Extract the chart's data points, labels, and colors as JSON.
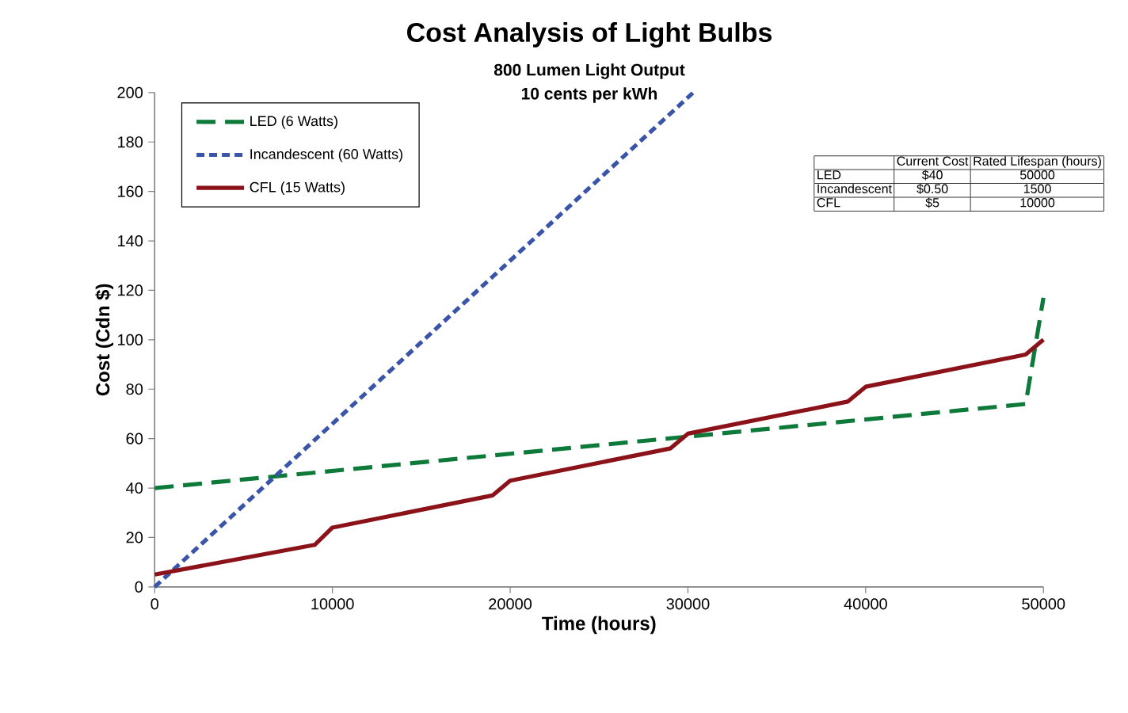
{
  "chart_data": {
    "type": "line",
    "title": "Cost Analysis of Light Bulbs",
    "subtitle": "800 Lumen Light Output",
    "xlabel": "Time (hours)",
    "ylabel": "Cost (Cdn $)",
    "xlim": [
      0,
      50000
    ],
    "ylim": [
      0,
      200
    ],
    "xticks": [
      0,
      10000,
      20000,
      30000,
      40000,
      50000
    ],
    "yticks": [
      0,
      20,
      40,
      60,
      80,
      100,
      120,
      140,
      160,
      180,
      200
    ],
    "legend": "top left",
    "grid": false,
    "marker": "none",
    "annotations": [
      "10 cents per kWh",
      "Current Cost",
      "Rated Lifespan (hours)",
      "LED",
      "$40",
      "50000",
      "Incandescent",
      "$0.50",
      "1500",
      "CFL",
      "$5",
      "10000"
    ],
    "series": [
      {
        "name": "LED (6 Watts)",
        "color": "#0e7a3a",
        "line_style": "dashed",
        "x": [
          0,
          49000,
          50000
        ],
        "values": [
          40,
          74,
          117
        ]
      },
      {
        "name": "Incandescent (60 Watts)",
        "color": "#3a55a8",
        "line_style": "dotted",
        "x": [
          0,
          30300
        ],
        "values": [
          0,
          200
        ]
      },
      {
        "name": "CFL (15 Watts)",
        "color": "#8b1218",
        "line_style": "solid",
        "x": [
          0,
          9000,
          10000,
          19000,
          20000,
          29000,
          30000,
          39000,
          40000,
          49000,
          50000
        ],
        "values": [
          5,
          17,
          24,
          37,
          43,
          56,
          62,
          75,
          81,
          94,
          100
        ]
      }
    ]
  }
}
